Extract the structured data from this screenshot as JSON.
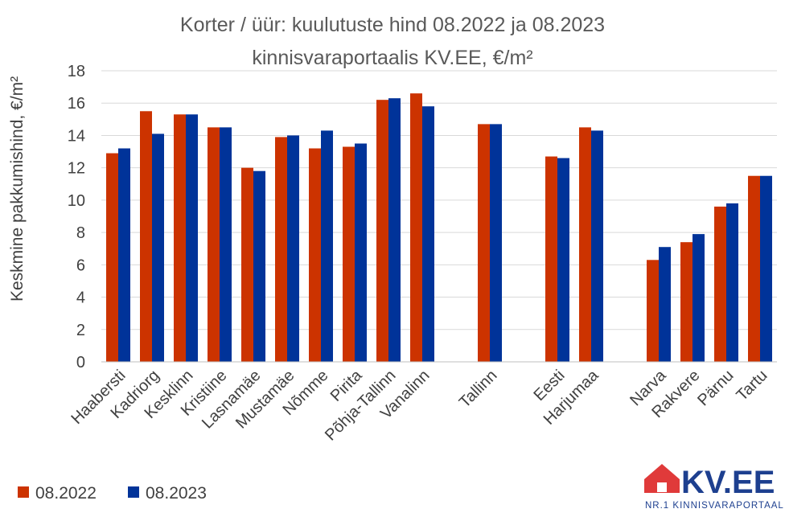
{
  "chart_data": {
    "type": "bar",
    "title": [
      "Korter / üür: kuulutuste hind 08.2022 ja 08.2023",
      "kinnisvaraportaalis KV.EE, €/m²"
    ],
    "ylabel": "Keskmine pakkumishind, €/m²",
    "xlabel": "",
    "ylim": [
      0,
      18
    ],
    "yticks": [
      0,
      2,
      4,
      6,
      8,
      10,
      12,
      14,
      16,
      18
    ],
    "grid": true,
    "legend": "bottom-left",
    "categories": [
      "Haabersti",
      "Kadriorg",
      "Kesklinn",
      "Kristiine",
      "Lasnamäe",
      "Mustamäe",
      "Nõmme",
      "Pirita",
      "Põhja-Tallinn",
      "Vanalinn",
      "",
      "Tallinn",
      "",
      "Eesti",
      "Harjumaa",
      "",
      "Narva",
      "Rakvere",
      "Pärnu",
      "Tartu"
    ],
    "series": [
      {
        "name": "08.2022",
        "color": "#cc3300",
        "values": [
          12.9,
          15.5,
          15.3,
          14.5,
          12.0,
          13.9,
          13.2,
          13.3,
          16.2,
          16.6,
          null,
          14.7,
          null,
          12.7,
          14.5,
          null,
          6.3,
          7.4,
          9.6,
          11.5
        ]
      },
      {
        "name": "08.2023",
        "color": "#003399",
        "values": [
          13.2,
          14.1,
          15.3,
          14.5,
          11.8,
          14.0,
          14.3,
          13.5,
          16.3,
          15.8,
          null,
          14.7,
          null,
          12.6,
          14.3,
          null,
          7.1,
          7.9,
          9.8,
          11.5
        ]
      }
    ]
  },
  "logo": {
    "text": "KV.EE",
    "subtitle": "NR.1 KINNISVARAPORTAAL",
    "house_color": "#e03a3a",
    "text_color": "#1d3f8f"
  }
}
